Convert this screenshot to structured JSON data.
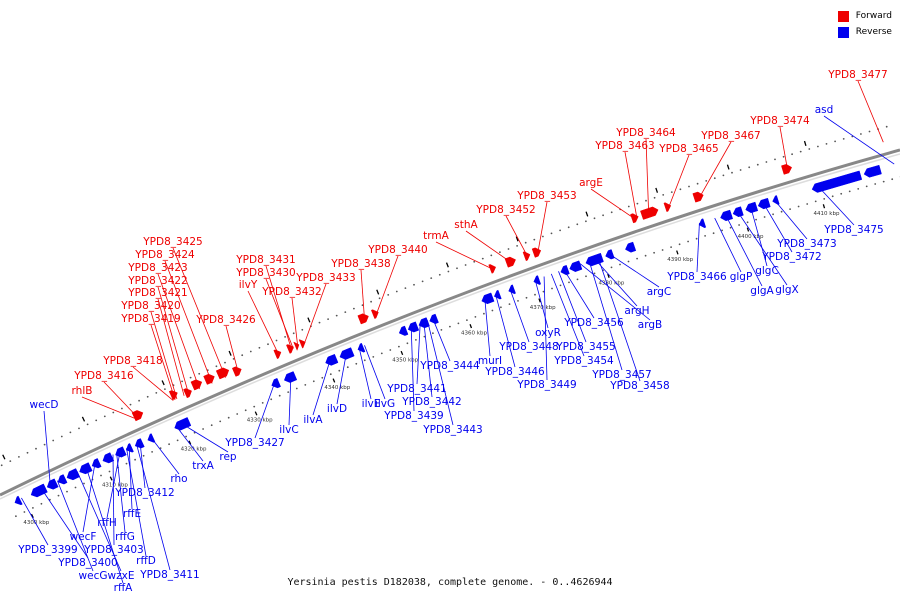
{
  "caption": "Yersinia pestis D182038, complete genome. - 0..4626944",
  "legend": [
    {
      "label": "Forward",
      "color": "#ee0000"
    },
    {
      "label": "Reverse",
      "color": "#0000ee"
    }
  ],
  "colors": {
    "forward": "#ee0000",
    "reverse": "#0000ee",
    "backbone": "#888888"
  },
  "scale_ticks": [
    {
      "label": "4300 kbp",
      "t": 0.02
    },
    {
      "label": "4310 kbp",
      "t": 0.108
    },
    {
      "label": "4320 kbp",
      "t": 0.196
    },
    {
      "label": "4330 kbp",
      "t": 0.27
    },
    {
      "label": "4340 kbp",
      "t": 0.357
    },
    {
      "label": "4350 kbp",
      "t": 0.433
    },
    {
      "label": "4360 kbp",
      "t": 0.51
    },
    {
      "label": "4370 kbp",
      "t": 0.587
    },
    {
      "label": "4380 kbp",
      "t": 0.664
    },
    {
      "label": "4390 kbp",
      "t": 0.741
    },
    {
      "label": "4400 kbp",
      "t": 0.82
    },
    {
      "label": "4410 kbp",
      "t": 0.905
    }
  ],
  "forward_labels": [
    "YPD8_3477",
    "YPD8_3474",
    "YPD8_3467",
    "YPD8_3464",
    "YPD8_3463",
    "YPD8_3465",
    "argE",
    "YPD8_3453",
    "YPD8_3452",
    "sthA",
    "trmA",
    "YPD8_3440",
    "YPD8_3438",
    "YPD8_3433",
    "YPD8_3431",
    "YPD8_3430",
    "YPD8_3432",
    "ilvY",
    "YPD8_3426",
    "YPD8_3425",
    "YPD8_3424",
    "YPD8_3423",
    "YPD8_3422",
    "YPD8_3421",
    "YPD8_3420",
    "YPD8_3419",
    "YPD8_3418",
    "YPD8_3416",
    "rhlB"
  ],
  "reverse_labels": [
    "asd",
    "YPD8_3475",
    "YPD8_3473",
    "YPD8_3472",
    "glgC",
    "glgX",
    "glgA",
    "glgP",
    "YPD8_3466",
    "argC",
    "argH",
    "argB",
    "YPD8_3456",
    "YPD8_3455",
    "YPD8_3454",
    "YPD8_3457",
    "YPD8_3458",
    "oxyR",
    "YPD8_3448",
    "YPD8_3449",
    "YPD8_3446",
    "murI",
    "YPD8_3444",
    "YPD8_3441",
    "YPD8_3442",
    "YPD8_3439",
    "YPD8_3443",
    "ilvE",
    "ilvG",
    "ilvD",
    "ilvA",
    "ilvC",
    "YPD8_3427",
    "rep",
    "trxA",
    "rho",
    "YPD8_3412",
    "rffE",
    "rffH",
    "rffG",
    "YPD8_3403",
    "rffD",
    "YPD8_3411",
    "wecF",
    "YPD8_3399",
    "YPD8_3400",
    "wecG",
    "wzxE",
    "rffA",
    "wecD"
  ]
}
